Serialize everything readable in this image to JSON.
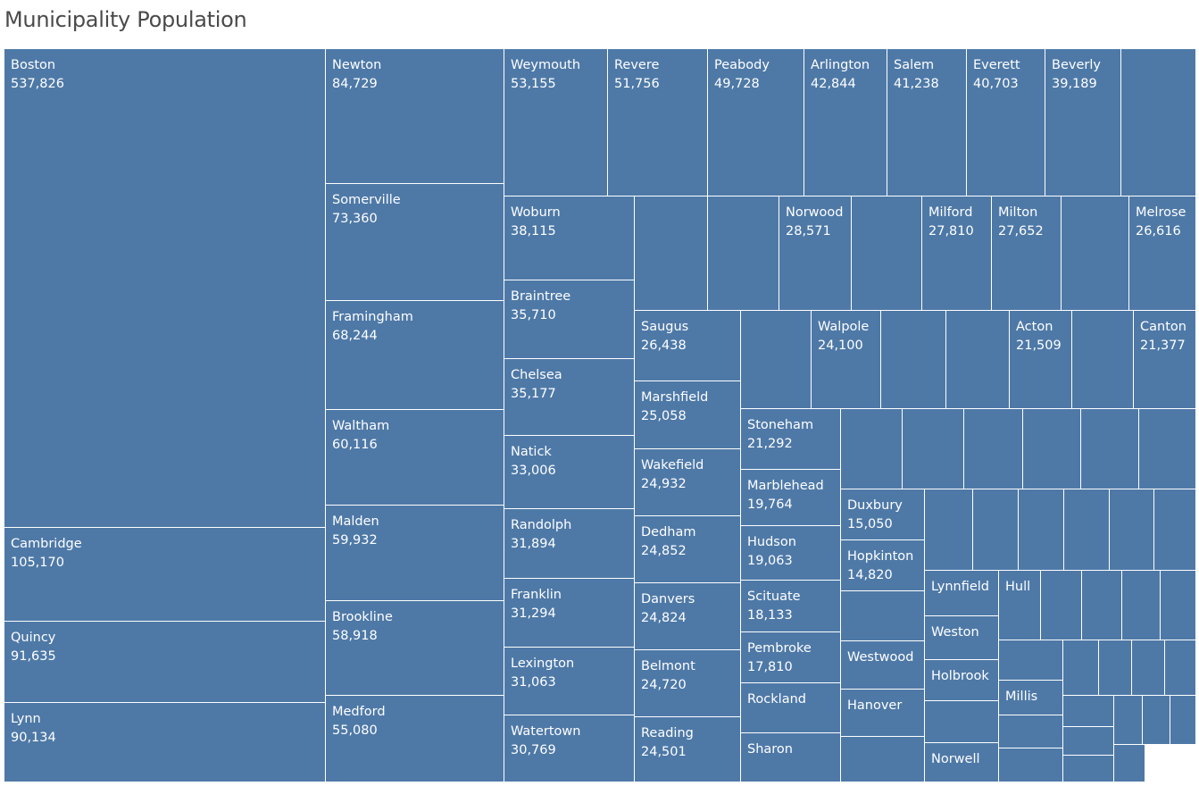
{
  "title": "Municipality Population",
  "chart_data": {
    "type": "treemap",
    "title": "Municipality Population",
    "color": "#4e79a7",
    "items": [
      {
        "name": "Boston",
        "value": "537,826"
      },
      {
        "name": "Cambridge",
        "value": "105,170"
      },
      {
        "name": "Quincy",
        "value": "91,635"
      },
      {
        "name": "Lynn",
        "value": "90,134"
      },
      {
        "name": "Newton",
        "value": "84,729"
      },
      {
        "name": "Somerville",
        "value": "73,360"
      },
      {
        "name": "Framingham",
        "value": "68,244"
      },
      {
        "name": "Waltham",
        "value": "60,116"
      },
      {
        "name": "Malden",
        "value": "59,932"
      },
      {
        "name": "Brookline",
        "value": "58,918"
      },
      {
        "name": "Medford",
        "value": "55,080"
      },
      {
        "name": "Weymouth",
        "value": "53,155"
      },
      {
        "name": "Revere",
        "value": "51,756"
      },
      {
        "name": "Peabody",
        "value": "49,728"
      },
      {
        "name": "Arlington",
        "value": "42,844"
      },
      {
        "name": "Salem",
        "value": "41,238"
      },
      {
        "name": "Everett",
        "value": "40,703"
      },
      {
        "name": "Beverly",
        "value": "39,189"
      },
      {
        "name": "",
        "value": ""
      },
      {
        "name": "Woburn",
        "value": "38,115"
      },
      {
        "name": "Braintree",
        "value": "35,710"
      },
      {
        "name": "Chelsea",
        "value": "35,177"
      },
      {
        "name": "Natick",
        "value": "33,006"
      },
      {
        "name": "Randolph",
        "value": "31,894"
      },
      {
        "name": "Franklin",
        "value": "31,294"
      },
      {
        "name": "Lexington",
        "value": "31,063"
      },
      {
        "name": "Watertown",
        "value": "30,769"
      },
      {
        "name": "",
        "value": ""
      },
      {
        "name": "",
        "value": ""
      },
      {
        "name": "Norwood",
        "value": "28,571"
      },
      {
        "name": "",
        "value": ""
      },
      {
        "name": "Milford",
        "value": "27,810"
      },
      {
        "name": "Milton",
        "value": "27,652"
      },
      {
        "name": "",
        "value": ""
      },
      {
        "name": "Melrose",
        "value": "26,616"
      },
      {
        "name": "Saugus",
        "value": "26,438"
      },
      {
        "name": "",
        "value": ""
      },
      {
        "name": "Walpole",
        "value": "24,100"
      },
      {
        "name": "",
        "value": ""
      },
      {
        "name": "",
        "value": ""
      },
      {
        "name": "Acton",
        "value": "21,509"
      },
      {
        "name": "",
        "value": ""
      },
      {
        "name": "Canton",
        "value": "21,377"
      },
      {
        "name": "Marshfield",
        "value": "25,058"
      },
      {
        "name": "Wakefield",
        "value": "24,932"
      },
      {
        "name": "Dedham",
        "value": "24,852"
      },
      {
        "name": "Danvers",
        "value": "24,824"
      },
      {
        "name": "Belmont",
        "value": "24,720"
      },
      {
        "name": "Reading",
        "value": "24,501"
      },
      {
        "name": "Stoneham",
        "value": "21,292"
      },
      {
        "name": "Marblehead",
        "value": "19,764"
      },
      {
        "name": "Hudson",
        "value": "19,063"
      },
      {
        "name": "Scituate",
        "value": "18,133"
      },
      {
        "name": "Pembroke",
        "value": "17,810"
      },
      {
        "name": "Rockland",
        "value": ""
      },
      {
        "name": "Sharon",
        "value": ""
      },
      {
        "name": "",
        "value": ""
      },
      {
        "name": "",
        "value": ""
      },
      {
        "name": "",
        "value": ""
      },
      {
        "name": "",
        "value": ""
      },
      {
        "name": "",
        "value": ""
      },
      {
        "name": "",
        "value": ""
      },
      {
        "name": "Duxbury",
        "value": "15,050"
      },
      {
        "name": "Hopkinton",
        "value": "14,820"
      },
      {
        "name": "",
        "value": ""
      },
      {
        "name": "Westwood",
        "value": ""
      },
      {
        "name": "Hanover",
        "value": ""
      },
      {
        "name": "",
        "value": ""
      },
      {
        "name": "",
        "value": ""
      },
      {
        "name": "",
        "value": ""
      },
      {
        "name": "",
        "value": ""
      },
      {
        "name": "",
        "value": ""
      },
      {
        "name": "",
        "value": ""
      },
      {
        "name": "",
        "value": ""
      },
      {
        "name": "Lynnfield",
        "value": ""
      },
      {
        "name": "Weston",
        "value": ""
      },
      {
        "name": "Holbrook",
        "value": ""
      },
      {
        "name": "",
        "value": ""
      },
      {
        "name": "Norwell",
        "value": ""
      },
      {
        "name": "Hull",
        "value": ""
      },
      {
        "name": "",
        "value": ""
      },
      {
        "name": "",
        "value": ""
      },
      {
        "name": "",
        "value": ""
      },
      {
        "name": "",
        "value": ""
      },
      {
        "name": "",
        "value": ""
      },
      {
        "name": "Millis",
        "value": ""
      },
      {
        "name": "",
        "value": ""
      },
      {
        "name": "",
        "value": ""
      },
      {
        "name": "",
        "value": ""
      },
      {
        "name": "",
        "value": ""
      },
      {
        "name": "",
        "value": ""
      },
      {
        "name": "",
        "value": ""
      },
      {
        "name": "",
        "value": ""
      },
      {
        "name": "",
        "value": ""
      },
      {
        "name": "",
        "value": ""
      },
      {
        "name": "",
        "value": ""
      },
      {
        "name": "",
        "value": ""
      },
      {
        "name": "",
        "value": ""
      },
      {
        "name": "",
        "value": ""
      }
    ]
  }
}
